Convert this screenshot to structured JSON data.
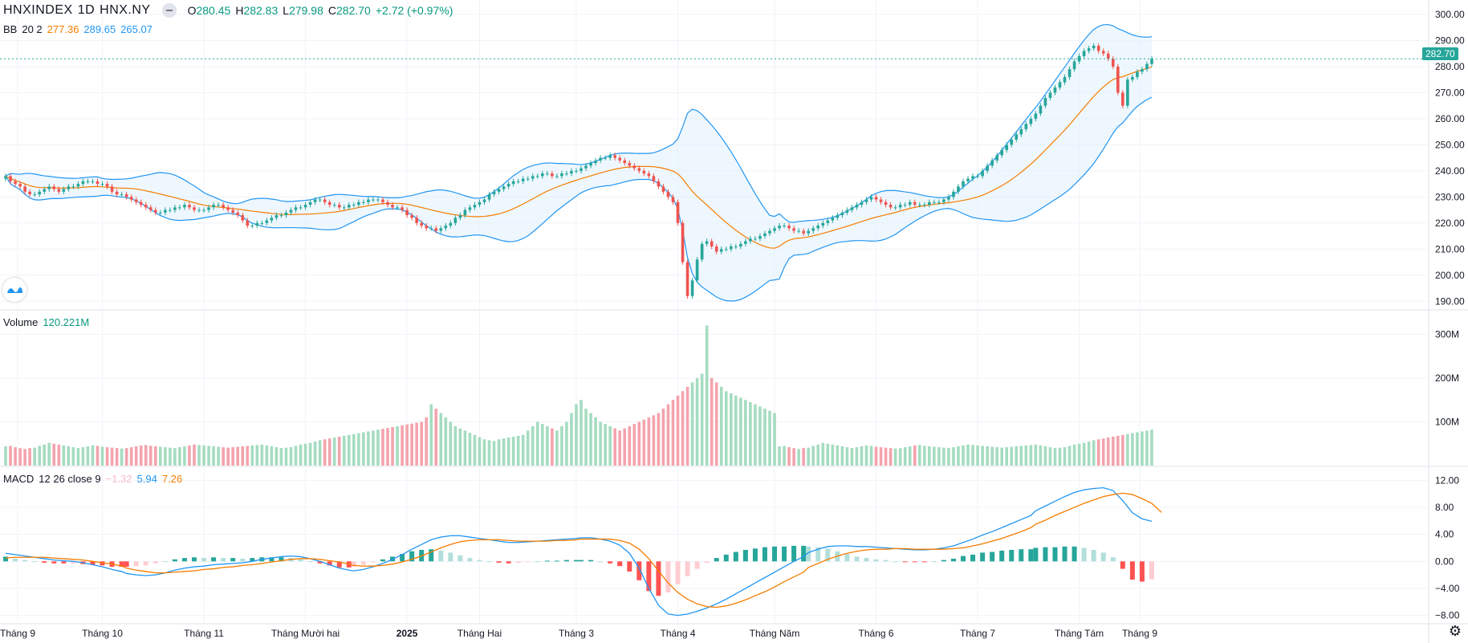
{
  "header": {
    "symbol": "HNXINDEX",
    "interval": "1D",
    "exchange": "HNX.NY",
    "open_label": "O",
    "open": "280.45",
    "high_label": "H",
    "high": "282.83",
    "low_label": "L",
    "low": "279.98",
    "close_label": "C",
    "close": "282.70",
    "change": "+2.72 (+0.97%)"
  },
  "bb_legend": {
    "name": "BB",
    "params": "20 2",
    "basis": "277.36",
    "upper": "289.65",
    "lower": "265.07"
  },
  "volume_legend": {
    "name": "Volume",
    "value": "120.221M"
  },
  "macd_legend": {
    "name": "MACD",
    "params": "12 26 close 9",
    "hist": "−1.32",
    "macd": "5.94",
    "signal": "7.26"
  },
  "last_price_tag": "282.70",
  "colors": {
    "up": "#26a69a",
    "down": "#ef5350",
    "vol_up": "#a5dcc0",
    "vol_down": "#f4a3ad",
    "bb_basis": "#f57c00",
    "bb_band": "#2196f3",
    "bb_fill": "#e3f2fd",
    "macd_line": "#2196f3",
    "signal_line": "#f57c00"
  },
  "icons": {
    "logo": "tradingview-logo-icon",
    "settings": "gear-icon"
  },
  "chart_data": {
    "type": "candlestick",
    "x_ticks": [
      "Tháng 9",
      "Tháng 10",
      "Tháng 11",
      "Tháng Mười hai",
      "2025",
      "Tháng Hai",
      "Tháng 3",
      "Tháng 4",
      "Tháng Năm",
      "Tháng 6",
      "Tháng 7",
      "Tháng Tám",
      "Tháng 9"
    ],
    "price_axis": {
      "ticks": [
        "300.00",
        "290.00",
        "280.00",
        "270.00",
        "260.00",
        "250.00",
        "240.00",
        "230.00",
        "220.00",
        "210.00",
        "200.00",
        "190.00"
      ],
      "ylim": [
        187,
        304
      ]
    },
    "volume_axis": {
      "ticks": [
        "300M",
        "200M",
        "100M"
      ],
      "ylim": [
        0,
        330
      ]
    },
    "macd_axis": {
      "ticks": [
        "12.00",
        "8.00",
        "4.00",
        "0.00",
        "−4.00",
        "−8.00"
      ],
      "ylim": [
        -9,
        13
      ]
    },
    "close_series": [
      {
        "month": "Tháng 9",
        "values": [
          238,
          236,
          235,
          234,
          232,
          231,
          231,
          232,
          233,
          234,
          233,
          232,
          233,
          234,
          234,
          235,
          236,
          236,
          236,
          235
        ]
      },
      {
        "month": "Tháng 10",
        "values": [
          235,
          234,
          232,
          231,
          231,
          230,
          229,
          228,
          227,
          226,
          225,
          224,
          224,
          225,
          225,
          226,
          226,
          227,
          226,
          225,
          225
        ]
      },
      {
        "month": "Tháng 11",
        "values": [
          225,
          226,
          227,
          227,
          226,
          225,
          224,
          223,
          221,
          219,
          219,
          220,
          220,
          221,
          222,
          223,
          223,
          224,
          225,
          226,
          226
        ]
      },
      {
        "month": "Tháng Mười hai",
        "values": [
          227,
          228,
          229,
          229,
          228,
          227,
          227,
          226,
          226,
          227,
          227,
          228,
          228,
          229,
          229,
          229,
          228,
          227,
          226,
          226,
          225
        ]
      },
      {
        "month": "2025",
        "values": [
          223,
          222,
          220,
          219,
          218,
          218,
          217,
          218,
          219,
          220,
          222,
          223,
          225,
          226,
          227
        ]
      },
      {
        "month": "Tháng Hai",
        "values": [
          228,
          229,
          231,
          232,
          233,
          234,
          235,
          236,
          236,
          237,
          237,
          238,
          238,
          239,
          239,
          238,
          238,
          239,
          239,
          240
        ]
      },
      {
        "month": "Tháng 3",
        "values": [
          240,
          241,
          242,
          243,
          244,
          245,
          245,
          246,
          245,
          244,
          243,
          242,
          241,
          240,
          239,
          238,
          236,
          234,
          232,
          230,
          228
        ]
      },
      {
        "month": "Tháng 4",
        "values": [
          220,
          205,
          192,
          198,
          206,
          212,
          213,
          211,
          209,
          210,
          210,
          211,
          211,
          212,
          213,
          214,
          214,
          215,
          216,
          217
        ]
      },
      {
        "month": "Tháng Năm",
        "values": [
          218,
          219,
          219,
          218,
          217,
          217,
          216,
          217,
          218,
          219,
          220,
          221,
          222,
          223,
          224,
          225,
          226,
          227,
          228,
          229,
          230
        ]
      },
      {
        "month": "Tháng 6",
        "values": [
          229,
          228,
          227,
          226,
          226,
          227,
          227,
          228,
          227,
          227,
          227,
          228,
          228,
          228,
          229,
          230,
          232,
          234,
          236,
          237,
          238
        ]
      },
      {
        "month": "Tháng 7",
        "values": [
          238,
          240,
          242,
          244,
          246,
          248,
          250,
          252,
          254,
          256,
          258,
          260,
          262,
          265,
          268,
          270,
          272,
          274,
          276,
          279,
          282
        ]
      },
      {
        "month": "Tháng Tám",
        "values": [
          284,
          286,
          287,
          288,
          286,
          285,
          283,
          280,
          270,
          265,
          275,
          276,
          278,
          279,
          281,
          283
        ]
      }
    ],
    "volume_series_M": [
      44,
      45,
      42,
      40,
      38,
      40,
      41,
      45,
      48,
      52,
      50,
      48,
      46,
      44,
      42,
      40,
      42,
      44,
      46,
      45,
      43,
      42,
      41,
      40,
      39,
      40,
      42,
      44,
      46,
      47,
      45,
      44,
      43,
      42,
      41,
      40,
      42,
      44,
      46,
      48,
      47,
      46,
      45,
      44,
      43,
      42,
      41,
      42,
      43,
      44,
      45,
      46,
      47,
      48,
      46,
      44,
      42,
      40,
      41,
      42,
      45,
      48,
      50,
      52,
      55,
      58,
      60,
      62,
      64,
      66,
      68,
      70,
      72,
      74,
      76,
      78,
      80,
      82,
      84,
      86,
      88,
      90,
      92,
      94,
      96,
      98,
      100,
      110,
      140,
      130,
      120,
      110,
      100,
      90,
      85,
      80,
      75,
      70,
      65,
      60,
      58,
      56,
      60,
      62,
      64,
      66,
      68,
      70,
      80,
      90,
      100,
      95,
      90,
      85,
      80,
      90,
      100,
      120,
      140,
      150,
      130,
      120,
      110,
      100,
      95,
      90,
      85,
      80,
      85,
      90,
      95,
      100,
      105,
      110,
      115,
      120,
      130,
      140,
      150,
      160,
      170,
      180,
      190,
      200,
      210,
      320,
      200,
      190,
      180,
      170,
      165,
      160,
      155,
      150,
      145,
      140,
      135,
      130,
      125,
      120
    ],
    "volume_note": "approx daily volume in millions",
    "macd_series": {
      "macd": [
        1.2,
        1.0,
        0.8,
        0.6,
        0.4,
        0.2,
        0.1,
        0.0,
        -0.2,
        -0.5,
        -0.8,
        -1.2,
        -1.5,
        -1.8,
        -2.0,
        -2.1,
        -2.0,
        -1.7,
        -1.3,
        -1.0,
        -0.8,
        -0.7,
        -0.5,
        -0.4,
        -0.3,
        -0.2,
        0.0,
        0.3,
        0.5,
        0.7,
        0.8,
        0.7,
        0.4,
        0.0,
        -0.5,
        -1.0,
        -1.3,
        -1.4,
        -1.2,
        -0.8,
        -0.3,
        0.3,
        1.0,
        1.8,
        2.5,
        3.2,
        3.6,
        3.8,
        3.8,
        3.6,
        3.4,
        3.2,
        3.0,
        2.8,
        2.8,
        2.9,
        3.0,
        3.1,
        3.2,
        3.3,
        3.4,
        3.5,
        3.5,
        3.3,
        3.0,
        2.4,
        1.2,
        -1.0,
        -4.0,
        -6.5,
        -7.8,
        -8.0,
        -7.8,
        -7.4,
        -6.9,
        -6.3,
        -5.6,
        -4.8,
        -4.0,
        -3.2,
        -2.4,
        -1.6,
        -0.8,
        0.0,
        0.7,
        1.3,
        1.8,
        2.2,
        2.3,
        2.3,
        2.2,
        2.2,
        2.1,
        2.0,
        1.9,
        1.8,
        1.7,
        1.7,
        1.8,
        2.0,
        2.3,
        2.8,
        3.3,
        3.9,
        4.4,
        5.0,
        5.6,
        6.2,
        6.8,
        7.5,
        8.2,
        8.9,
        9.6,
        10.2,
        10.6,
        10.8,
        10.9,
        10.5,
        9.0,
        7.2,
        6.3,
        5.94
      ],
      "signal": [
        0.5,
        0.6,
        0.6,
        0.6,
        0.6,
        0.5,
        0.4,
        0.3,
        0.2,
        0.0,
        -0.2,
        -0.4,
        -0.7,
        -1.0,
        -1.3,
        -1.5,
        -1.7,
        -1.7,
        -1.6,
        -1.5,
        -1.4,
        -1.2,
        -1.1,
        -0.9,
        -0.8,
        -0.6,
        -0.5,
        -0.3,
        -0.1,
        0.1,
        0.3,
        0.4,
        0.4,
        0.3,
        0.1,
        -0.1,
        -0.4,
        -0.6,
        -0.7,
        -0.7,
        -0.6,
        -0.4,
        -0.1,
        0.3,
        0.8,
        1.4,
        2.0,
        2.5,
        2.9,
        3.1,
        3.2,
        3.2,
        3.2,
        3.1,
        3.0,
        3.0,
        3.0,
        3.0,
        3.1,
        3.1,
        3.2,
        3.3,
        3.3,
        3.3,
        3.3,
        3.1,
        2.7,
        1.8,
        0.4,
        -1.4,
        -3.2,
        -4.6,
        -5.6,
        -6.3,
        -6.7,
        -6.8,
        -6.6,
        -6.2,
        -5.7,
        -5.1,
        -4.5,
        -3.8,
        -3.0,
        -2.3,
        -1.6,
        -0.9,
        -0.3,
        0.3,
        0.8,
        1.2,
        1.5,
        1.7,
        1.8,
        1.8,
        1.9,
        1.9,
        1.8,
        1.8,
        1.8,
        1.8,
        1.9,
        2.0,
        2.3,
        2.6,
        3.0,
        3.4,
        3.9,
        4.4,
        5.0,
        5.5,
        6.1,
        6.8,
        7.4,
        8.0,
        8.6,
        9.1,
        9.6,
        9.9,
        10.1,
        9.9,
        9.3,
        8.6,
        7.26
      ]
    }
  }
}
